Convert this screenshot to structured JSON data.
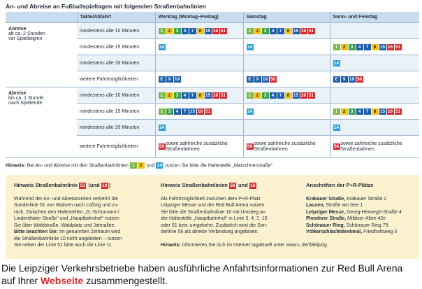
{
  "header": {
    "title": "An- und Abreise an Fußballspieltagen mit folgenden Straßenbahnlinien"
  },
  "line_colors": {
    "1": "#7ab648",
    "2": "#f2c318",
    "3": "#3fa34d",
    "4": "#1d5ca8",
    "7": "#1d5ca8",
    "8": "#f2c318",
    "9": "#1d5ca8",
    "10": "#d42a2e",
    "14": "#2aa0d8",
    "15": "#1d5ca8",
    "16": "#d42a2e",
    "19": "#1d5ca8",
    "51": "#d42a2e",
    "56": "#d42a2e",
    "E": "#1d5ca8"
  },
  "table": {
    "header": [
      "Takte/Abfahrt",
      "Werktag (Montag–Freitag)",
      "Samstag",
      "Sonn- und Feiertag"
    ],
    "groups": [
      {
        "title": "Anreise",
        "subtitle": [
          "ab ca. 2 Stunden",
          "vor Spielbeginn"
        ],
        "rows": [
          {
            "takt": "mindestens alle 10 Minuten",
            "cells": [
              {
                "lines": [
                  "1",
                  "2",
                  "3",
                  "4",
                  "7",
                  "8",
                  "15",
                  "16",
                  "51"
                ]
              },
              {
                "lines": [
                  "1",
                  "2",
                  "3",
                  "4",
                  "7",
                  "8",
                  "15",
                  "16",
                  "51"
                ]
              },
              {
                "lines": []
              }
            ]
          },
          {
            "takt": "mindestens alle 15 Minuten",
            "cells": [
              {
                "lines": [
                  "14"
                ]
              },
              {
                "lines": [
                  "14"
                ]
              },
              {
                "lines": [
                  "1",
                  "2",
                  "3",
                  "4",
                  "7",
                  "8",
                  "15",
                  "16",
                  "51"
                ]
              }
            ]
          },
          {
            "takt": "mindestens alle 20 Minuten",
            "cells": [
              {
                "lines": []
              },
              {
                "lines": []
              },
              {
                "lines": [
                  "14"
                ]
              }
            ]
          },
          {
            "takt": "weitere Fahrtmöglichkeiten",
            "cells": [
              {
                "lines": [
                  "E",
                  "9",
                  "19"
                ]
              },
              {
                "lines": [
                  "E",
                  "9",
                  "19",
                  "56"
                ]
              },
              {
                "lines": [
                  "E",
                  "9",
                  "19",
                  "56"
                ]
              }
            ]
          }
        ]
      },
      {
        "title": "Abreise",
        "subtitle": [
          "bis ca. 1 Stunde",
          "nach Spielende"
        ],
        "rows": [
          {
            "takt": "mindestens alle 10 Minuten",
            "cells": [
              {
                "lines": [
                  "1",
                  "2",
                  "3",
                  "4",
                  "7",
                  "8",
                  "15",
                  "16",
                  "51"
                ]
              },
              {
                "lines": [
                  "1",
                  "2",
                  "3",
                  "4",
                  "7",
                  "8",
                  "15",
                  "16",
                  "51"
                ]
              },
              {
                "lines": []
              }
            ]
          },
          {
            "takt": "mindestens alle 15 Minuten",
            "cells": [
              {
                "lines": [
                  "1",
                  "3",
                  "4",
                  "7",
                  "15",
                  "16",
                  "51"
                ]
              },
              {
                "lines": [
                  "14"
                ]
              },
              {
                "lines": [
                  "1",
                  "2",
                  "3",
                  "4",
                  "7",
                  "8",
                  "15",
                  "16",
                  "51"
                ]
              }
            ]
          },
          {
            "takt": "mindestens alle 20 Minuten",
            "cells": [
              {
                "lines": [
                  "14"
                ]
              },
              {
                "lines": []
              },
              {
                "lines": [
                  "14"
                ]
              }
            ]
          },
          {
            "takt": "weitere Fahrtmöglichkeiten",
            "cells": [
              {
                "lines": [
                  "56"
                ],
                "note": "sowie zahlreiche zusätzliche Straßenbahnen"
              },
              {
                "lines": [
                  "56"
                ],
                "note": "sowie zahlreiche zusätzliche Straßenbahnen"
              },
              {
                "lines": [
                  "56"
                ],
                "note": "sowie zahlreiche zusätzliche Straßenbahnen"
              }
            ]
          }
        ]
      }
    ]
  },
  "hint": {
    "label": "Hinweis:",
    "text1": " Bei An- und Abreise mit den Straßenbahnlinien ",
    "lines1": [
      "1",
      "2"
    ],
    "and": " und ",
    "lines2": [
      "14"
    ],
    "text2": " nutzen Sie bitte die Haltestelle „Marschnerstraße“."
  },
  "box": {
    "col1": {
      "title": "Hinweis Straßenbahnlinie ",
      "badge1": "51",
      "mid": " (und ",
      "badge2": "10",
      "end": ")",
      "lines": [
        "Während der An- und Abreisezeiten verkehrt die",
        "Sonderlinie 51 von Wahren nach Lößnig und zu-",
        "rück. Zwischen den Haltestellen „G.-Schumann-/",
        "Lindenthaler Straße“ und „Hauptbahnhof“ nutzen",
        "Sie über Waldstraße, Waldplatz und Jahnallee."
      ],
      "bold": "Bitte beachten Sie:",
      "lines2": [
        " Im genannten Zeitraum wird",
        "die Straßenbahnlinie 10 nicht angeboten – nutzen",
        "Sie neben der Linie 51 bitte auch die Linie 11."
      ]
    },
    "col2": {
      "title": "Hinweis Straßenbahnlinien ",
      "badge1": "56",
      "mid": " und ",
      "badge2": "16",
      "lines": [
        "Als Fahrtmöglichkeit zwischen dem P+R-Platz",
        "Leipziger Messe und der Red Bull Arena nutzen",
        "Sie bitte die Straßenbahnlinie 16 mit Umstieg an",
        "der Haltestelle „Hauptbahnhof“ in Linie 3, 4, 7, 15",
        "oder 51 bzw. umgekehrt. Zusätzlich wird die Son-",
        "derlinie 56 als direkte Verbindung angeboten."
      ],
      "bold": "Hinweis:",
      "note": " Informieren Sie sich im Internet tagaktuell unter www.L.de/rbleipzig."
    },
    "col3": {
      "title": "Anschriften der P+R-Plätze",
      "items": [
        {
          "name": "Krakauer Straße,",
          "addr": " Krakauer Straße 2"
        },
        {
          "name": "Lausen,",
          "addr": " Straße am See 1"
        },
        {
          "name": "Leipziger Messe,",
          "addr": " Georg-Herwegh-Straße 4"
        },
        {
          "name": "Plovdiver Straße,",
          "addr": " Miltitzer Allee 42e"
        },
        {
          "name": "Schönauer Ring,",
          "addr": " Schönauer Ring 79"
        },
        {
          "name": "Völkerschlachtdenkmal,",
          "addr": " Friedhofsweg 3"
        }
      ]
    }
  },
  "caption": {
    "line1": "Die Leipziger Verkehrsbetriebe haben ausführliche Anfahrtsinformationen zur Red Bull Arena",
    "pre": "auf Ihrer ",
    "link": "Webseite",
    "post": " zusammengestellt."
  }
}
